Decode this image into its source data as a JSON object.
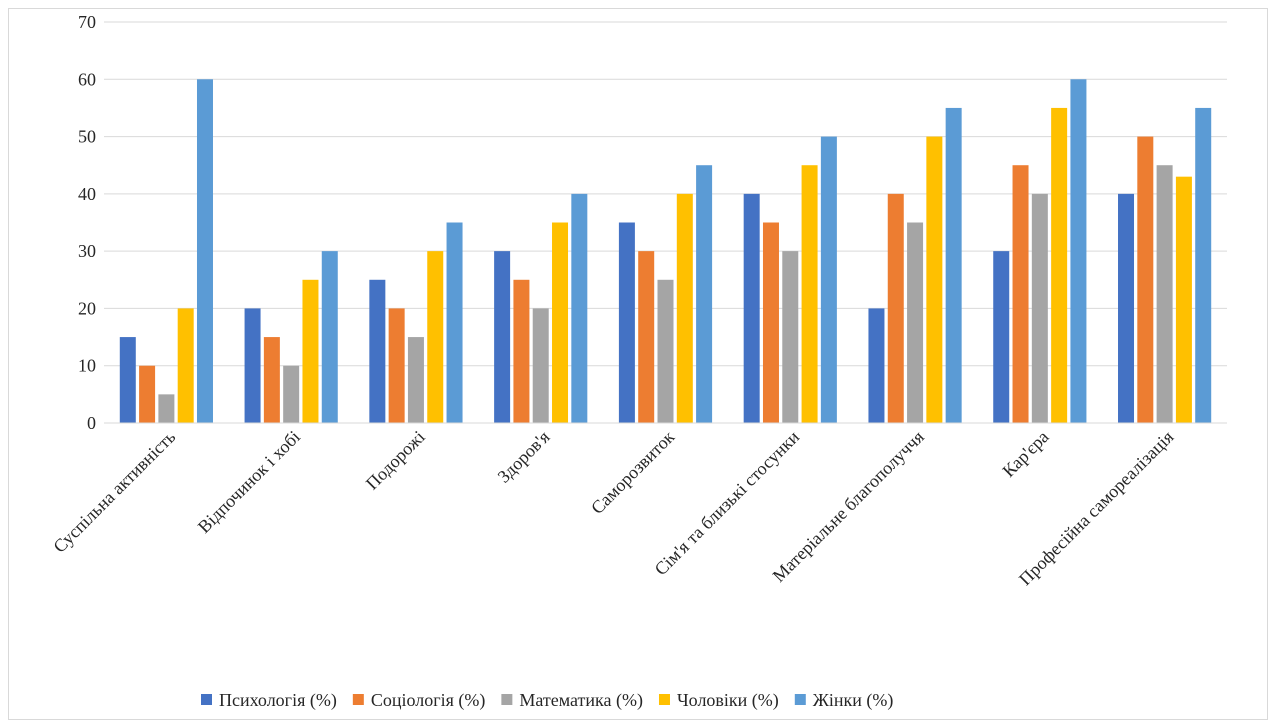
{
  "chart_data": {
    "type": "bar",
    "categories": [
      "Суспільна активність",
      "Відпочинок і хобі",
      "Подорожі",
      "Здоров'я",
      "Саморозвиток",
      "Сім'я та близькі стосунки",
      "Матеріальне благополуччя",
      "Кар'єра",
      "Професійна самореалізація"
    ],
    "series": [
      {
        "name": "Психологія (%)",
        "color": "#4472C4",
        "values": [
          15,
          20,
          25,
          30,
          35,
          40,
          20,
          30,
          40
        ]
      },
      {
        "name": "Соціологія (%)",
        "color": "#ED7D31",
        "values": [
          10,
          15,
          20,
          25,
          30,
          35,
          40,
          45,
          50
        ]
      },
      {
        "name": "Математика (%)",
        "color": "#A5A5A5",
        "values": [
          5,
          10,
          15,
          20,
          25,
          30,
          35,
          40,
          45
        ]
      },
      {
        "name": "Чоловіки (%)",
        "color": "#FFC000",
        "values": [
          20,
          25,
          30,
          35,
          40,
          45,
          50,
          55,
          43
        ]
      },
      {
        "name": "Жінки (%)",
        "color": "#5B9BD5",
        "values": [
          60,
          30,
          35,
          40,
          45,
          50,
          55,
          60,
          55
        ]
      }
    ],
    "yticks": [
      "0",
      "10",
      "20",
      "30",
      "40",
      "50",
      "60",
      "70"
    ],
    "ylim": [
      0,
      70
    ],
    "grid": true,
    "legend": "bottom"
  }
}
